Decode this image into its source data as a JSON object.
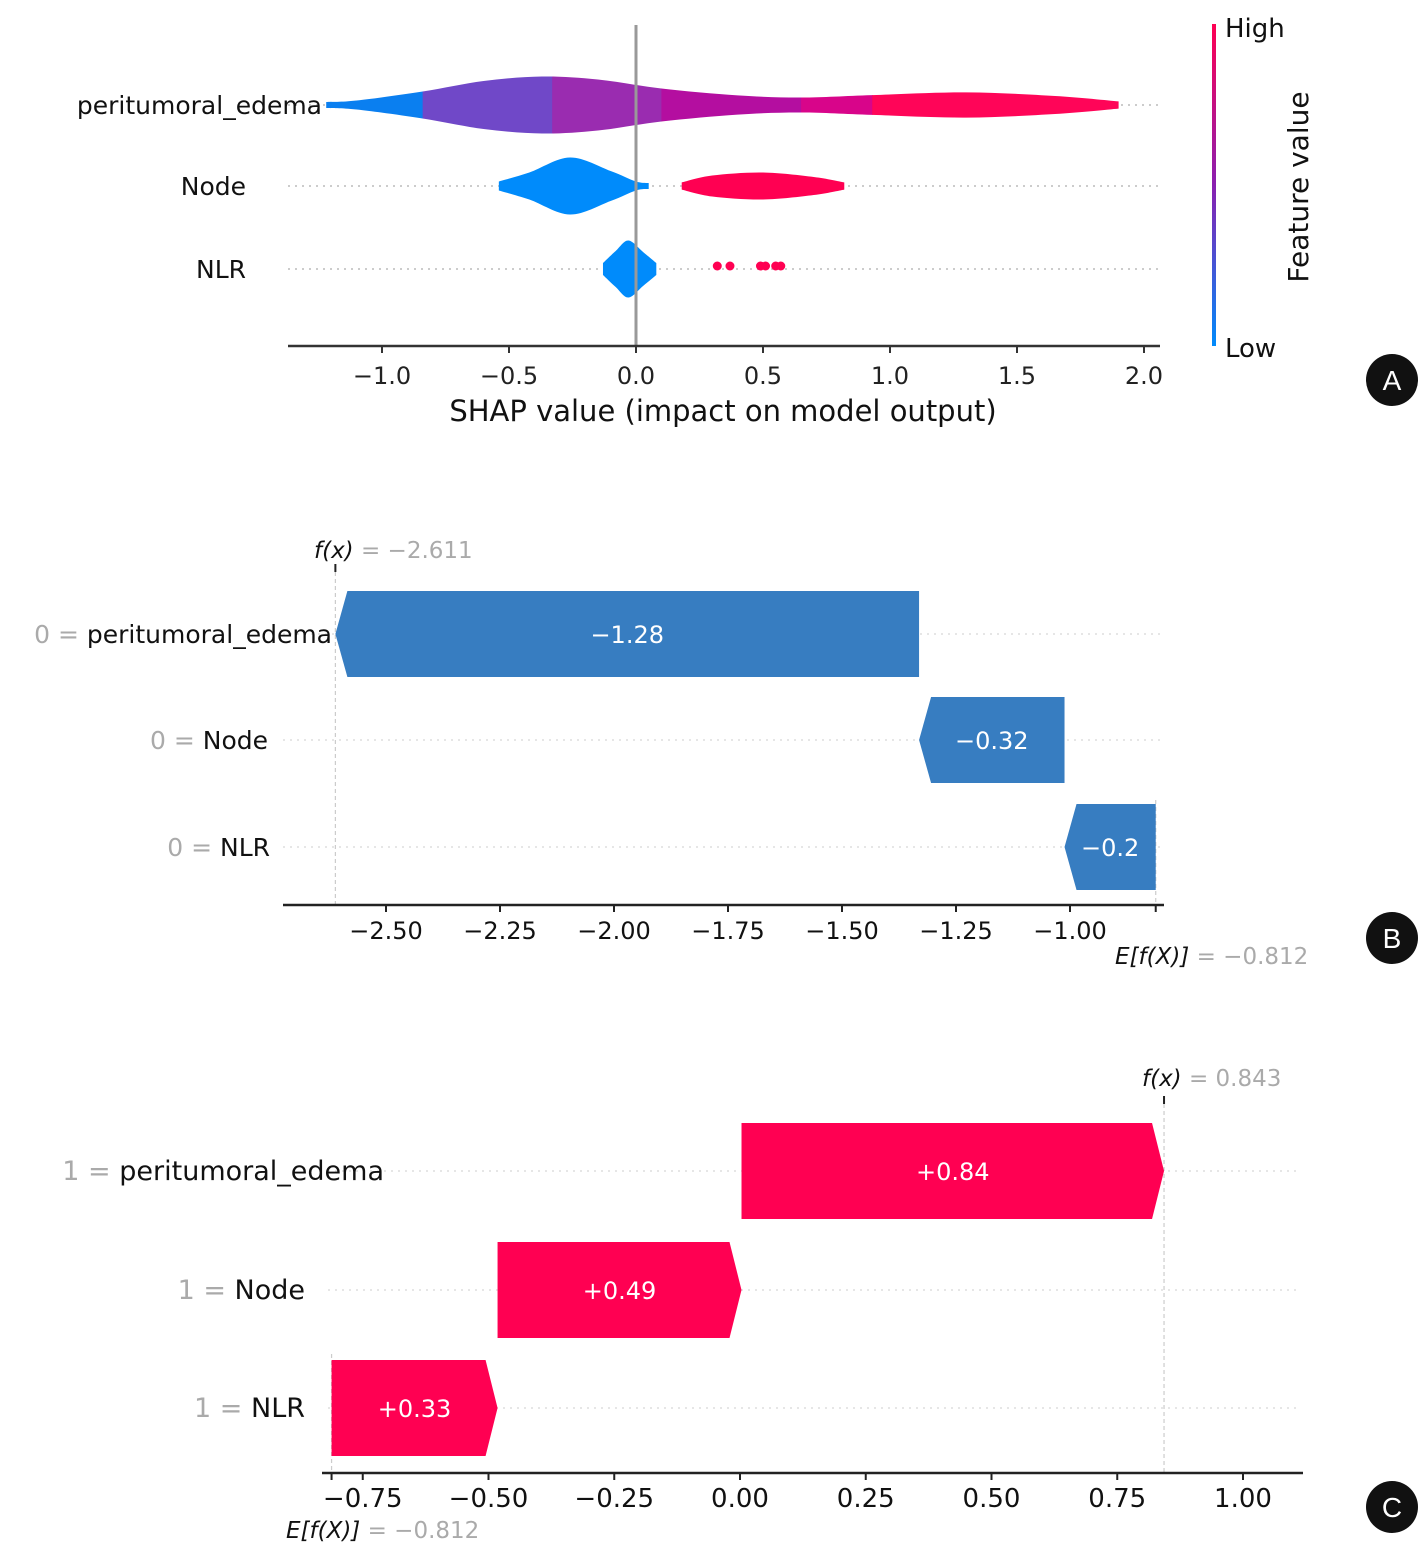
{
  "chart_data": [
    {
      "panel": "A",
      "type": "violin",
      "title": "",
      "xlabel": "SHAP value (impact on model output)",
      "ylabel": "",
      "xlim": [
        -1.35,
        2.05
      ],
      "xticks": [
        -1.0,
        -0.5,
        0.0,
        0.5,
        1.0,
        1.5,
        2.0
      ],
      "xtick_labels": [
        "−1.0",
        "−0.5",
        "0.0",
        "0.5",
        "1.0",
        "1.5",
        "2.0"
      ],
      "features": [
        {
          "name": "peritumoral_edema",
          "segments": [
            {
              "from": -1.22,
              "to": -0.84,
              "color": "#0a7ff0",
              "color_to": "#0070e8",
              "half_width_from": 0.1,
              "half_width_to": 0.45
            },
            {
              "from": -0.84,
              "to": -0.33,
              "color": "#7048c8",
              "half_width_from": 0.45,
              "half_width_to": 0.95
            },
            {
              "from": -0.33,
              "to": 0.1,
              "color": "#9a2cb0",
              "half_width_from": 0.95,
              "half_width_to": 0.55
            },
            {
              "from": 0.1,
              "to": 0.65,
              "color": "#b40ea0",
              "half_width_from": 0.55,
              "half_width_to": 0.25
            },
            {
              "from": 0.65,
              "to": 0.93,
              "color": "#d8058a",
              "half_width_from": 0.25,
              "half_width_to": 0.35
            },
            {
              "from": 0.93,
              "to": 1.9,
              "color": "#ff0558",
              "half_width_from": 0.35,
              "half_width_to": 0.15
            }
          ],
          "violin_profile": [
            [
              -1.22,
              0.1
            ],
            [
              -1.1,
              0.15
            ],
            [
              -0.84,
              0.45
            ],
            [
              -0.6,
              0.8
            ],
            [
              -0.37,
              0.95
            ],
            [
              -0.15,
              0.85
            ],
            [
              0.1,
              0.55
            ],
            [
              0.4,
              0.32
            ],
            [
              0.65,
              0.25
            ],
            [
              0.93,
              0.33
            ],
            [
              1.3,
              0.42
            ],
            [
              1.65,
              0.3
            ],
            [
              1.9,
              0.12
            ]
          ],
          "range": [
            -1.22,
            1.9
          ]
        },
        {
          "name": "Node",
          "low_violin": {
            "range": [
              -0.54,
              0.05
            ],
            "color": "#008bfb",
            "profile": [
              [
                -0.54,
                0.15
              ],
              [
                -0.42,
                0.45
              ],
              [
                -0.26,
                0.95
              ],
              [
                -0.1,
                0.5
              ],
              [
                0.0,
                0.15
              ],
              [
                0.05,
                0.1
              ]
            ]
          },
          "high_violin": {
            "range": [
              0.18,
              0.82
            ],
            "color": "#ff0052",
            "profile": [
              [
                0.18,
                0.12
              ],
              [
                0.3,
                0.35
              ],
              [
                0.5,
                0.45
              ],
              [
                0.7,
                0.3
              ],
              [
                0.82,
                0.12
              ]
            ]
          }
        },
        {
          "name": "NLR",
          "low_violin": {
            "range": [
              -0.13,
              0.08
            ],
            "color": "#008bfb",
            "profile": [
              [
                -0.13,
                0.2
              ],
              [
                -0.08,
                0.6
              ],
              [
                -0.03,
                0.95
              ],
              [
                0.03,
                0.55
              ],
              [
                0.08,
                0.2
              ]
            ]
          },
          "high_points": {
            "color": "#ff0052",
            "x": [
              0.32,
              0.37,
              0.49,
              0.51,
              0.55,
              0.57
            ]
          }
        }
      ],
      "colorbar": {
        "label": "Feature value",
        "high_label": "High",
        "low_label": "Low",
        "high_color": "#ff0052",
        "low_color": "#008bfb"
      },
      "zero_line": 0.0
    },
    {
      "panel": "B",
      "type": "waterfall",
      "fx_label": "f(x)",
      "fx_value": "= −2.611",
      "fx": -2.611,
      "efx_label": "E[f(X)]",
      "efx_value": "= −0.812",
      "efx": -0.812,
      "xlim": [
        -2.72,
        -0.795
      ],
      "xticks": [
        -2.5,
        -2.25,
        -2.0,
        -1.75,
        -1.5,
        -1.25,
        -1.0
      ],
      "xtick_labels": [
        "−2.50",
        "−2.25",
        "−2.00",
        "−1.75",
        "−1.50",
        "−1.25",
        "−1.00"
      ],
      "color": "#377dc1",
      "rows": [
        {
          "feature_value": "0",
          "feature": "peritumoral_edema",
          "contribution": -1.28,
          "label": "−1.28",
          "start": -1.331,
          "end": -2.611
        },
        {
          "feature_value": "0",
          "feature": "Node",
          "contribution": -0.32,
          "label": "−0.32",
          "start": -1.012,
          "end": -1.331
        },
        {
          "feature_value": "0",
          "feature": "NLR",
          "contribution": -0.2,
          "label": "−0.2",
          "start": -0.812,
          "end": -1.012
        }
      ]
    },
    {
      "panel": "C",
      "type": "waterfall",
      "fx_label": "f(x)",
      "fx_value": "= 0.843",
      "fx": 0.843,
      "efx_label": "E[f(X)]",
      "efx_value": "= −0.812",
      "efx": -0.812,
      "xlim": [
        -0.83,
        1.12
      ],
      "xticks": [
        -0.75,
        -0.5,
        -0.25,
        0.0,
        0.25,
        0.5,
        0.75,
        1.0
      ],
      "xtick_labels": [
        "−0.75",
        "−0.50",
        "−0.25",
        "0.00",
        "0.25",
        "0.50",
        "0.75",
        "1.00"
      ],
      "color": "#ff0052",
      "rows": [
        {
          "feature_value": "1",
          "feature": "peritumoral_edema",
          "contribution": 0.84,
          "label": "+0.84",
          "start": 0.003,
          "end": 0.843
        },
        {
          "feature_value": "1",
          "feature": "Node",
          "contribution": 0.49,
          "label": "+0.49",
          "start": -0.482,
          "end": 0.003
        },
        {
          "feature_value": "1",
          "feature": "NLR",
          "contribution": 0.33,
          "label": "+0.33",
          "start": -0.812,
          "end": -0.482
        }
      ]
    }
  ],
  "panel_labels": [
    "A",
    "B",
    "C"
  ]
}
